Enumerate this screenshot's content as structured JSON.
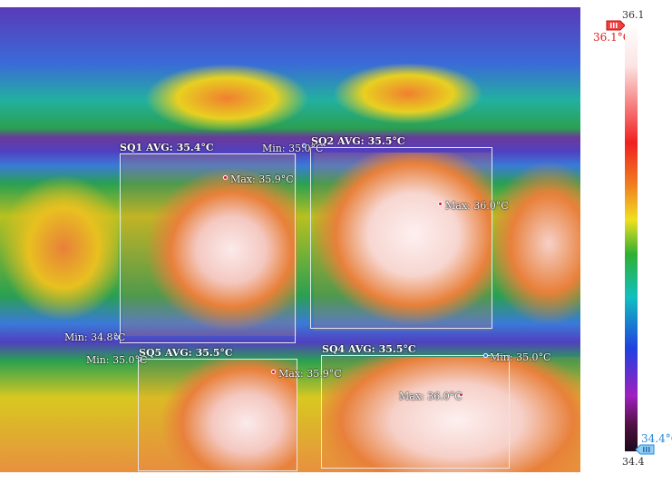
{
  "regions": [
    {
      "id": "sq1",
      "avg_label": "SQ1 AVG: 35.4°C",
      "max_label": "Max: 35.9°C",
      "min_label": "Min: 35.0°C"
    },
    {
      "id": "sq2",
      "avg_label": "SQ2 AVG: 35.5°C",
      "max_label": "Max: 36.0°C",
      "min_label": ""
    },
    {
      "id": "sq5",
      "avg_label": "SQ5 AVG: 35.5°C",
      "max_label": "Max: 35.9°C",
      "min_label": "Min: 35.0°C"
    },
    {
      "id": "sq4",
      "avg_label": "SQ4 AVG: 35.5°C",
      "max_label": "Max: 36.0°C",
      "min_label": "Min: 35.0°C"
    }
  ],
  "global_min_label": "Min: 34.8°C",
  "scale": {
    "max_value": "36.1",
    "min_value": "34.4",
    "high_marker": "36.1°C",
    "low_marker": "34.4°C",
    "high_color": "#e02020",
    "low_color": "#2a8ad8"
  }
}
